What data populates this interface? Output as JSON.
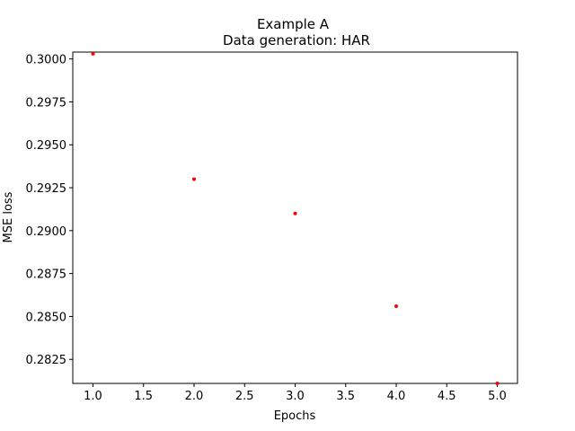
{
  "chart_data": {
    "type": "scatter",
    "title": "Example A",
    "subtitle": "Data generation: HAR",
    "xlabel": "Epochs",
    "ylabel": "MSE loss",
    "xlim": [
      0.8,
      5.2
    ],
    "ylim": [
      0.2811,
      0.3004
    ],
    "xticks": [
      "1.0",
      "1.5",
      "2.0",
      "2.5",
      "3.0",
      "3.5",
      "4.0",
      "4.5",
      "5.0"
    ],
    "yticks": [
      "0.2825",
      "0.2850",
      "0.2875",
      "0.2900",
      "0.2925",
      "0.2950",
      "0.2975",
      "0.3000"
    ],
    "grid": false,
    "series": [
      {
        "color": "#ff0000",
        "points": [
          {
            "x": 1,
            "y": 0.3003
          },
          {
            "x": 2,
            "y": 0.293
          },
          {
            "x": 3,
            "y": 0.291
          },
          {
            "x": 4,
            "y": 0.2856
          },
          {
            "x": 5,
            "y": 0.2811
          }
        ]
      }
    ]
  }
}
